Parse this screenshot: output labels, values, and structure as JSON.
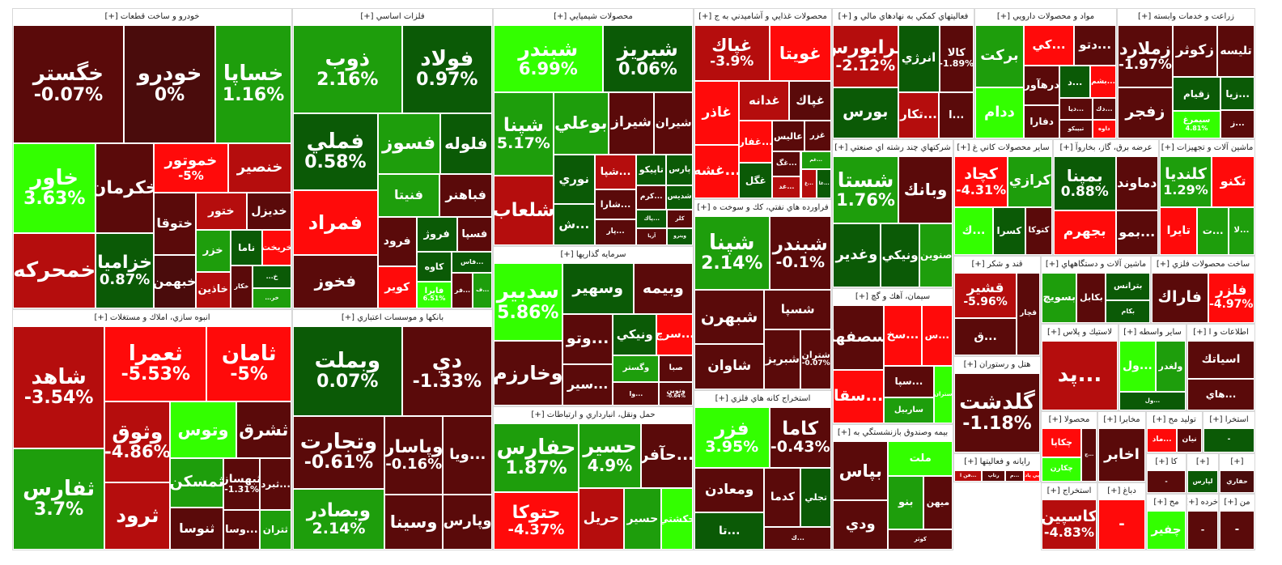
{
  "palette": {
    "g3": "#33ff00",
    "g2": "#1e9e0c",
    "g1": "#0b5a06",
    "r3": "#ff0a0a",
    "r2": "#b50d0d",
    "r1": "#5a0a0a",
    "n": "#4a0c0c"
  },
  "sectors": [
    {
      "title": "خودرو و ساخت قطعات [+]",
      "tiles": [
        {
          "sym": "خگستر",
          "pct": "-0.07%",
          "c": "r1"
        },
        {
          "sym": "خودرو",
          "pct": "0%",
          "c": "n"
        },
        {
          "sym": "خساپا",
          "pct": "1.16%",
          "c": "g2"
        },
        {
          "sym": "خاور",
          "pct": "3.63%",
          "c": "g3"
        },
        {
          "sym": "خمحركه",
          "c": "r2"
        },
        {
          "sym": "خكرمان",
          "c": "r1"
        },
        {
          "sym": "خزاميا",
          "pct": "0.87%",
          "c": "g1"
        },
        {
          "sym": "خموتور",
          "pct": "-5%",
          "c": "r3"
        },
        {
          "sym": "خنصير",
          "c": "r2"
        },
        {
          "sym": "ختوقا",
          "c": "r1"
        },
        {
          "sym": "خبهمن",
          "c": "n"
        },
        {
          "sym": "ختور",
          "c": "r2"
        },
        {
          "sym": "خديزل",
          "c": "r1"
        },
        {
          "sym": "خزر",
          "c": "g2"
        },
        {
          "sym": "خاذين",
          "c": "r2"
        },
        {
          "sym": "ناما",
          "c": "g1"
        },
        {
          "sym": "خريخت",
          "c": "r3"
        },
        {
          "sym": "خكار",
          "c": "r1"
        },
        {
          "sym": "خ...",
          "c": "g1"
        },
        {
          "sym": "خر...",
          "c": "g2"
        }
      ]
    },
    {
      "title": "فلزات اساسي [+]",
      "tiles": [
        {
          "sym": "ذوب",
          "pct": "2.16%",
          "c": "g2"
        },
        {
          "sym": "فولاد",
          "pct": "0.97%",
          "c": "g1"
        },
        {
          "sym": "فملي",
          "pct": "0.58%",
          "c": "g1"
        },
        {
          "sym": "فمراد",
          "c": "r3"
        },
        {
          "sym": "فخوز",
          "c": "r1"
        },
        {
          "sym": "فسوز",
          "c": "g2"
        },
        {
          "sym": "فلوله",
          "c": "g1"
        },
        {
          "sym": "فنيتا",
          "c": "g2"
        },
        {
          "sym": "فباهنر",
          "c": "r1"
        },
        {
          "sym": "فرود",
          "c": "r1"
        },
        {
          "sym": "كوير",
          "c": "r3"
        },
        {
          "sym": "فروژ",
          "c": "g1"
        },
        {
          "sym": "فسپا",
          "c": "r1"
        },
        {
          "sym": "كاوه",
          "c": "g1"
        },
        {
          "sym": "فايرا",
          "pct": "6.51%",
          "c": "g3"
        },
        {
          "sym": "...فاس",
          "c": "g1"
        },
        {
          "sym": "...فر",
          "c": "r1"
        },
        {
          "sym": "...ف",
          "c": "g2"
        }
      ]
    },
    {
      "title": "محصولات شيميايي [+]",
      "tiles": [
        {
          "sym": "شبندر",
          "pct": "6.99%",
          "c": "g3"
        },
        {
          "sym": "شبريز",
          "pct": "0.06%",
          "c": "g1"
        },
        {
          "sym": "شپنا",
          "pct": "5.17%",
          "c": "g2"
        },
        {
          "sym": "شلعاب",
          "c": "r2"
        },
        {
          "sym": "بوعلي",
          "c": "g2"
        },
        {
          "sym": "شيراز",
          "c": "r1"
        },
        {
          "sym": "شيران",
          "c": "r1"
        },
        {
          "sym": "نوري",
          "c": "g1"
        },
        {
          "sym": "...ش",
          "c": "g1"
        },
        {
          "sym": "...شپا",
          "c": "r2"
        },
        {
          "sym": "...شارا",
          "c": "r1"
        },
        {
          "sym": "...پار",
          "c": "r1"
        },
        {
          "sym": "تاپيكو",
          "c": "g1"
        },
        {
          "sym": "پارس",
          "c": "g1"
        },
        {
          "sym": "...كرم",
          "c": "r1"
        },
        {
          "sym": "شديس",
          "c": "g1"
        },
        {
          "sym": "...پاك",
          "c": "g1"
        },
        {
          "sym": "آريا",
          "c": "r1"
        },
        {
          "sym": "كلر",
          "c": "r1"
        },
        {
          "sym": "ويترو",
          "c": "g1"
        }
      ]
    },
    {
      "title": "محصولات غذايي و آشاميدني به ج [+]",
      "tiles": [
        {
          "sym": "غپاك",
          "pct": "-3.9%",
          "c": "r2"
        },
        {
          "sym": "غويتا",
          "c": "r3"
        },
        {
          "sym": "غاذر",
          "c": "r3"
        },
        {
          "sym": "...غشه",
          "c": "r3"
        },
        {
          "sym": "غدانه",
          "c": "r2"
        },
        {
          "sym": "غپاك",
          "c": "r1"
        },
        {
          "sym": "...غفار",
          "c": "r3"
        },
        {
          "sym": "غگل",
          "c": "g1"
        },
        {
          "sym": "عاليس",
          "c": "r1"
        },
        {
          "sym": "غزر",
          "c": "r1"
        },
        {
          "sym": "...غگ",
          "c": "r1"
        },
        {
          "sym": "...غد",
          "c": "r2"
        },
        {
          "sym": "...غم",
          "c": "g2"
        },
        {
          "sym": "...غ",
          "c": "r2"
        },
        {
          "sym": "...غا",
          "c": "g1"
        }
      ]
    },
    {
      "title": "فعاليتهاي كمكي به نهادهاي مالي و [+]",
      "tiles": [
        {
          "sym": "فرابورس",
          "pct": "-2.12%",
          "c": "r2"
        },
        {
          "sym": "بورس",
          "c": "g1"
        },
        {
          "sym": "انرژي",
          "c": "g1"
        },
        {
          "sym": "كالا",
          "pct": "-1.89%",
          "c": "r1"
        },
        {
          "sym": "...تكار",
          "c": "r2"
        },
        {
          "sym": "...ا",
          "c": "r1"
        }
      ]
    },
    {
      "title": "مواد و محصولات دارويي [+]",
      "tiles": [
        {
          "sym": "بركت",
          "c": "g2"
        },
        {
          "sym": "ددام",
          "c": "g3"
        },
        {
          "sym": "...كي",
          "c": "r3"
        },
        {
          "sym": "...دتو",
          "c": "r1"
        },
        {
          "sym": "درهآور",
          "c": "r1"
        },
        {
          "sym": "دفارا",
          "c": "r1"
        },
        {
          "sym": "...د",
          "c": "g1"
        },
        {
          "sym": "...بشم",
          "c": "r3"
        },
        {
          "sym": "...ديا",
          "c": "r1"
        },
        {
          "sym": "تيپيكو",
          "c": "r1"
        },
        {
          "sym": "...دك",
          "c": "r1"
        },
        {
          "sym": "داوه",
          "c": "r3"
        }
      ]
    },
    {
      "title": "زراعت و خدمات وابسته [+]",
      "tiles": [
        {
          "sym": "زملارد",
          "pct": "-1.97%",
          "c": "r1"
        },
        {
          "sym": "زفجر",
          "c": "r1"
        },
        {
          "sym": "زكوثر",
          "c": "r1"
        },
        {
          "sym": "تليسه",
          "c": "r1"
        },
        {
          "sym": "زقيام",
          "c": "g1"
        },
        {
          "sym": "سيمرغ",
          "pct": "4.81%",
          "c": "g3"
        },
        {
          "sym": "...زيا",
          "c": "g1"
        },
        {
          "sym": "...ز",
          "c": "r1"
        }
      ]
    },
    {
      "title": "شركتهاي چند رشته اي صنعتي [+]",
      "tiles": [
        {
          "sym": "شستا",
          "pct": "1.76%",
          "c": "g2"
        },
        {
          "sym": "وبانك",
          "c": "r1"
        },
        {
          "sym": "وغدير",
          "c": "g1"
        },
        {
          "sym": "ونيكي",
          "c": "g1"
        },
        {
          "sym": "صنوين",
          "c": "g2"
        }
      ]
    },
    {
      "title": "سایر محصولات کاني غ [+]",
      "tiles": [
        {
          "sym": "كچاد",
          "pct": "-4.31%",
          "c": "r3"
        },
        {
          "sym": "كرازي",
          "c": "g2"
        },
        {
          "sym": "...ك",
          "c": "g3"
        },
        {
          "sym": "كسرا",
          "c": "g1"
        },
        {
          "sym": "كتوكا",
          "c": "r1"
        }
      ]
    },
    {
      "title": "عرضه برق، گاز، بخاروآ [+]",
      "tiles": [
        {
          "sym": "بمپنا",
          "pct": "0.88%",
          "c": "g1"
        },
        {
          "sym": "بجهرم",
          "c": "r3"
        },
        {
          "sym": "دماوند",
          "c": "r1"
        },
        {
          "sym": "...بمو",
          "c": "r1"
        }
      ]
    },
    {
      "title": "ماشين آلات و تجهيزات [+]",
      "tiles": [
        {
          "sym": "كلنديا",
          "pct": "1.29%",
          "c": "g2"
        },
        {
          "sym": "تكنو",
          "c": "r3"
        },
        {
          "sym": "تايرا",
          "c": "r3"
        },
        {
          "sym": "...ت",
          "c": "g2"
        },
        {
          "sym": "...لا",
          "c": "g2"
        }
      ]
    },
    {
      "title": "انبوه سازي، املاك و مستغلات [+]",
      "tiles": [
        {
          "sym": "شاهد",
          "pct": "-3.54%",
          "c": "r2"
        },
        {
          "sym": "ثفارس",
          "pct": "3.7%",
          "c": "g2"
        },
        {
          "sym": "ثعمرا",
          "pct": "-5.53%",
          "c": "r3"
        },
        {
          "sym": "ثامان",
          "pct": "-5%",
          "c": "r3"
        },
        {
          "sym": "وثوق",
          "pct": "-4.86%",
          "c": "r2"
        },
        {
          "sym": "ثرود",
          "c": "r2"
        },
        {
          "sym": "وتوس",
          "c": "g3"
        },
        {
          "sym": "ثشرق",
          "c": "r1"
        },
        {
          "sym": "ثمسكن",
          "c": "g2"
        },
        {
          "sym": "ثنوسا",
          "c": "r1"
        },
        {
          "sym": "ثبهساز",
          "pct": "-1.31%",
          "c": "r1"
        },
        {
          "sym": "...ثبرد",
          "c": "r1"
        },
        {
          "sym": "...وسا",
          "c": "r1"
        },
        {
          "sym": "ثتران",
          "c": "g2"
        }
      ]
    },
    {
      "title": "بانكها و موسسات اعتباري [+]",
      "tiles": [
        {
          "sym": "وبملت",
          "pct": "0.07%",
          "c": "g1"
        },
        {
          "sym": "دي",
          "pct": "-1.33%",
          "c": "r1"
        },
        {
          "sym": "وتجارت",
          "pct": "-0.61%",
          "c": "r1"
        },
        {
          "sym": "وبصادر",
          "pct": "2.14%",
          "c": "g2"
        },
        {
          "sym": "وپاسار",
          "pct": "-0.16%",
          "c": "r1"
        },
        {
          "sym": "...ويا",
          "c": "r1"
        },
        {
          "sym": "وسينا",
          "c": "r1"
        },
        {
          "sym": "وپارس",
          "c": "r1"
        }
      ]
    },
    {
      "title": "سرمايه گذاريها [+]",
      "tiles": [
        {
          "sym": "سدبير",
          "pct": "5.86%",
          "c": "g3"
        },
        {
          "sym": "وخارزم",
          "c": "r1"
        },
        {
          "sym": "وسهير",
          "c": "g1"
        },
        {
          "sym": "وبيمه",
          "c": "r1"
        },
        {
          "sym": "...وتو",
          "c": "r1"
        },
        {
          "sym": "...سير",
          "c": "r1"
        },
        {
          "sym": "ونيكي",
          "c": "g1"
        },
        {
          "sym": "...سرچ",
          "c": "r3"
        },
        {
          "sym": "وگستر",
          "c": "g2"
        },
        {
          "sym": "...وا",
          "c": "r1"
        },
        {
          "sym": "صبا",
          "c": "r1"
        },
        {
          "sym": "ونوين",
          "pct": "-0.64%",
          "c": "r1"
        }
      ]
    },
    {
      "title": "فراورده هاي نفتي، كك و سوخت ه [+]",
      "tiles": [
        {
          "sym": "شپنا",
          "pct": "2.14%",
          "c": "g2"
        },
        {
          "sym": "شبندر",
          "pct": "-0.1%",
          "c": "r1"
        },
        {
          "sym": "شبهرن",
          "c": "r1"
        },
        {
          "sym": "شاوان",
          "c": "r1"
        },
        {
          "sym": "شسپا",
          "c": "r1"
        },
        {
          "sym": "شبريز",
          "c": "r1"
        },
        {
          "sym": "شتران",
          "pct": "-0.07%",
          "c": "r1"
        }
      ]
    },
    {
      "title": "حمل ونقل، انبارداري و ارتباطات [+]",
      "tiles": [
        {
          "sym": "حفارس",
          "pct": "1.87%",
          "c": "g2"
        },
        {
          "sym": "حتوكا",
          "pct": "-4.37%",
          "c": "r3"
        },
        {
          "sym": "حسير",
          "pct": "4.9%",
          "c": "g2"
        },
        {
          "sym": "...حآفر",
          "c": "r1"
        },
        {
          "sym": "حريل",
          "c": "r2"
        },
        {
          "sym": "حسير",
          "c": "g2"
        },
        {
          "sym": "حكشتي",
          "c": "g3"
        }
      ]
    },
    {
      "title": "استخراج كانه هاي فلزي [+]",
      "tiles": [
        {
          "sym": "فزر",
          "pct": "3.95%",
          "c": "g3"
        },
        {
          "sym": "كاما",
          "pct": "-0.43%",
          "c": "r1"
        },
        {
          "sym": "ومعادن",
          "c": "r1"
        },
        {
          "sym": "...تا",
          "c": "g1"
        },
        {
          "sym": "كدما",
          "c": "r1"
        },
        {
          "sym": "تجلي",
          "c": "g1"
        },
        {
          "sym": "...ك",
          "c": "r1"
        }
      ]
    },
    {
      "title": "سيمان، آهك و گچ [+]",
      "tiles": [
        {
          "sym": "سصفها",
          "c": "r1"
        },
        {
          "sym": "...سقا",
          "c": "r3"
        },
        {
          "sym": "...سخ",
          "c": "r3"
        },
        {
          "sym": "...س",
          "c": "r3"
        },
        {
          "sym": "...سپا",
          "c": "r1"
        },
        {
          "sym": "ساربيل",
          "c": "g2"
        },
        {
          "sym": "ستران",
          "c": "g3"
        }
      ]
    },
    {
      "title": "قند و شكر [+]",
      "tiles": [
        {
          "sym": "قشير",
          "pct": "-5.96%",
          "c": "r2"
        },
        {
          "sym": "...ق",
          "c": "r1"
        },
        {
          "sym": "قچار",
          "c": "r1"
        }
      ]
    },
    {
      "title": "ماشين آلات و دستگاههاي [+]",
      "tiles": [
        {
          "sym": "بسويچ",
          "c": "g2"
        },
        {
          "sym": "بكابل",
          "c": "r1"
        },
        {
          "sym": "بترانس",
          "c": "g1"
        },
        {
          "sym": "بكام",
          "c": "g1"
        }
      ]
    },
    {
      "title": "ساخت محصولات فلزي [+]",
      "tiles": [
        {
          "sym": "فاراك",
          "c": "r1"
        },
        {
          "sym": "فلزر",
          "pct": "-4.97%",
          "c": "r3"
        }
      ]
    },
    {
      "title": "بيمه وصندوق بازنشستگي به [+]",
      "tiles": [
        {
          "sym": "بپاس",
          "c": "r1"
        },
        {
          "sym": "ودي",
          "c": "r1"
        },
        {
          "sym": "ملت",
          "c": "g3"
        },
        {
          "sym": "بنو",
          "c": "g2"
        },
        {
          "sym": "ميهن",
          "c": "r1"
        },
        {
          "sym": "كوثر",
          "c": "r1"
        }
      ]
    },
    {
      "title": "هتل و رستوران [+]",
      "tiles": [
        {
          "sym": "گلدشت",
          "pct": "-1.18%",
          "c": "r1"
        }
      ]
    },
    {
      "title": "رايانه و فعاليتها [+]",
      "tiles": [
        {
          "sym": "...فن ا",
          "c": "r2"
        },
        {
          "sym": "رتاپ",
          "c": "r1"
        },
        {
          "sym": "...م",
          "c": "r1"
        },
        {
          "sym": "پي پاد",
          "c": "r3"
        }
      ]
    },
    {
      "title": "لاستيك و پلاس [+]",
      "tiles": [
        {
          "sym": "...پد",
          "c": "r2"
        }
      ]
    },
    {
      "title": "ساير واسطه [+]",
      "tiles": [
        {
          "sym": "...ول",
          "c": "g3"
        },
        {
          "sym": "ولغدر",
          "c": "g2"
        },
        {
          "sym": "...ول",
          "c": "g1"
        }
      ]
    },
    {
      "title": "اطلاعات و ا [+]",
      "tiles": [
        {
          "sym": "اسياتك",
          "c": "r1"
        },
        {
          "sym": "...هاي",
          "c": "r1"
        }
      ]
    },
    {
      "title": "محصولا [+]",
      "tiles": [
        {
          "sym": "چكاپا",
          "c": "r3"
        },
        {
          "sym": "چكارن",
          "c": "g3"
        },
        {
          "sym": "...چ",
          "c": "r1"
        }
      ]
    },
    {
      "title": "مخابرا [+]",
      "tiles": [
        {
          "sym": "اخابر",
          "c": "r1"
        }
      ]
    },
    {
      "title": "توليد مح [+]",
      "tiles": [
        {
          "sym": "...ماد",
          "c": "r3"
        },
        {
          "sym": "نيان",
          "c": "r1"
        }
      ]
    },
    {
      "title": "استخرا [+]",
      "tiles": [
        {
          "sym": "-",
          "c": "g1"
        }
      ]
    },
    {
      "title": "استخراج [+]",
      "tiles": [
        {
          "sym": "كاسپين",
          "pct": "-4.83%",
          "c": "r2"
        }
      ]
    },
    {
      "title": "دباغ [+]",
      "tiles": [
        {
          "sym": "-",
          "c": "r3"
        }
      ]
    },
    {
      "title": "كا [+]",
      "tiles": [
        {
          "sym": "-",
          "c": "r1"
        }
      ]
    },
    {
      "title": "[+]",
      "tiles": [
        {
          "sym": "لپارس",
          "c": "g1"
        }
      ]
    },
    {
      "title": "[+]",
      "tiles": [
        {
          "sym": "حفاري",
          "c": "n"
        }
      ]
    },
    {
      "title": "مح [+]",
      "tiles": [
        {
          "sym": "چفير",
          "c": "g3"
        }
      ]
    },
    {
      "title": "خرده [+]",
      "tiles": [
        {
          "sym": "-",
          "c": "r1"
        }
      ]
    },
    {
      "title": "من [+]",
      "tiles": [
        {
          "sym": "-",
          "c": "r1"
        }
      ]
    },
    {
      "title": "[+]",
      "tiles": [
        {
          "sym": "-",
          "c": "r1"
        }
      ]
    }
  ]
}
